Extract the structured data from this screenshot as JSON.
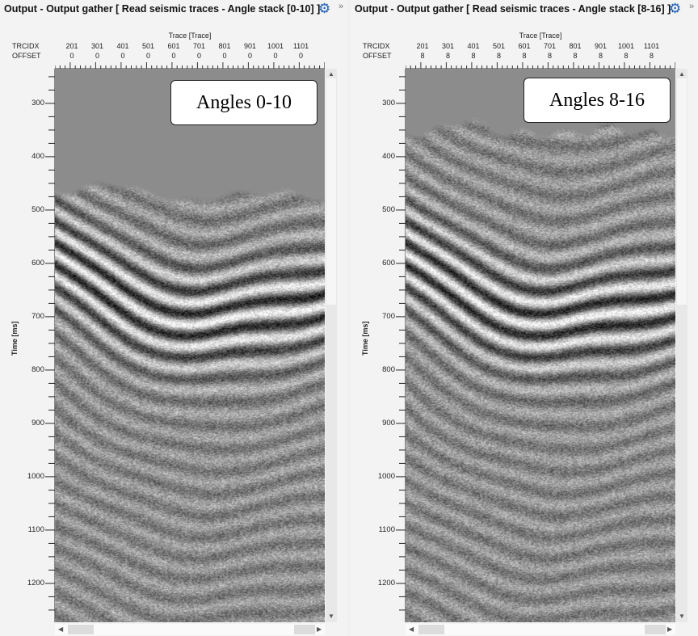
{
  "panels": [
    {
      "title": "Output - Output gather [ Read seismic traces - Angle stack [0-10] ]",
      "label": "Angles 0-10",
      "offset": "0",
      "variant": 0
    },
    {
      "title": "Output - Output gather [ Read seismic traces - Angle stack [8-16] ]",
      "label": "Angles 8-16",
      "offset": "8",
      "variant": 1
    }
  ],
  "axis": {
    "x_title": "Trace [Trace]",
    "row1": "TRCIDX",
    "row2": "OFFSET",
    "y_title": "Time [ms]",
    "traces": [
      "201",
      "301",
      "401",
      "501",
      "601",
      "701",
      "801",
      "901",
      "1001",
      "1101"
    ],
    "times": [
      "300",
      "400",
      "500",
      "600",
      "700",
      "800",
      "900",
      "1000",
      "1100",
      "1200"
    ]
  },
  "icons": {
    "settings": "gear-icon",
    "more": "chevron-double-right-icon"
  },
  "colors": {
    "gear": "#1a5fb4",
    "background_above_horizon": "#8c8c8c"
  }
}
